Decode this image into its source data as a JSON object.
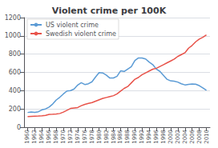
{
  "chart_data": {
    "type": "line",
    "title": "Violent crime per 100K",
    "x": [
      1960,
      1961,
      1962,
      1963,
      1964,
      1965,
      1966,
      1967,
      1968,
      1969,
      1970,
      1971,
      1972,
      1973,
      1974,
      1975,
      1976,
      1977,
      1978,
      1979,
      1980,
      1981,
      1982,
      1983,
      1984,
      1985,
      1986,
      1987,
      1988,
      1989,
      1990,
      1991,
      1992,
      1993,
      1994,
      1995,
      1996,
      1997,
      1998,
      1999,
      2000,
      2001,
      2002,
      2003,
      2004,
      2005,
      2006,
      2007,
      2008,
      2009,
      2010
    ],
    "series": [
      {
        "name": "US violent crime",
        "color": "#5b9bd5",
        "values": [
          161,
          166,
          163,
          169,
          190,
          200,
          220,
          253,
          298,
          328,
          364,
          396,
          401,
          418,
          461,
          487,
          467,
          476,
          497,
          549,
          597,
          594,
          571,
          538,
          539,
          557,
          617,
          610,
          637,
          663,
          730,
          758,
          758,
          747,
          713,
          685,
          636,
          611,
          567,
          524,
          507,
          504,
          494,
          475,
          463,
          469,
          474,
          471,
          455,
          431,
          404
        ]
      },
      {
        "name": "Swedish violent crime",
        "color": "#e8534a",
        "values": [
          115,
          118,
          120,
          122,
          125,
          130,
          140,
          142,
          145,
          150,
          165,
          185,
          205,
          210,
          215,
          235,
          250,
          260,
          270,
          285,
          300,
          315,
          325,
          335,
          345,
          365,
          395,
          425,
          445,
          485,
          525,
          545,
          575,
          595,
          615,
          635,
          645,
          665,
          685,
          705,
          725,
          745,
          775,
          795,
          815,
          865,
          895,
          935,
          965,
          985,
          1010
        ]
      }
    ],
    "xlim": [
      1959,
      2011
    ],
    "xticks": [
      1960,
      1962,
      1964,
      1966,
      1968,
      1970,
      1972,
      1974,
      1976,
      1978,
      1980,
      1982,
      1984,
      1986,
      1988,
      1990,
      1992,
      1994,
      1996,
      1998,
      2000,
      2002,
      2004,
      2006,
      2008,
      2010
    ],
    "ylim": [
      0,
      1200
    ],
    "yticks": [
      0,
      200,
      400,
      600,
      800,
      1000,
      1200
    ],
    "grid": "y",
    "legend": "upper left"
  }
}
